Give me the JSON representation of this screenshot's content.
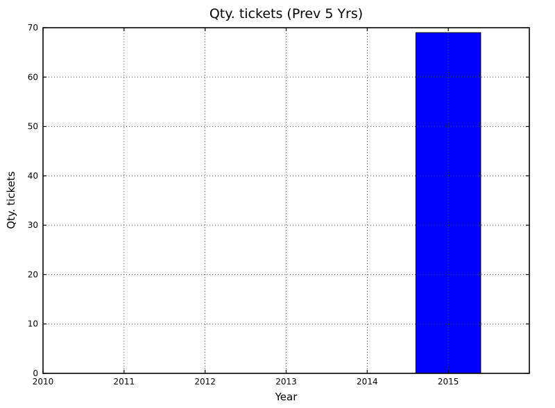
{
  "chart_data": {
    "type": "bar",
    "title": "Qty. tickets (Prev 5 Yrs)",
    "xlabel": "Year",
    "ylabel": "Qty. tickets",
    "categories": [
      2015
    ],
    "values": [
      69
    ],
    "bar_width": 0.8,
    "bar_color": "#0000ff",
    "bar_edge_color": "#000000",
    "xlim": [
      2010,
      2016
    ],
    "ylim": [
      0,
      70
    ],
    "xticks": [
      2010,
      2011,
      2012,
      2013,
      2014,
      2015
    ],
    "yticks": [
      0,
      10,
      20,
      30,
      40,
      50,
      60,
      70
    ],
    "grid": "on",
    "grid_style": "dotted",
    "grid_color": "#444444",
    "legend": "none",
    "background": "#ffffff",
    "spine_color": "#000000"
  }
}
